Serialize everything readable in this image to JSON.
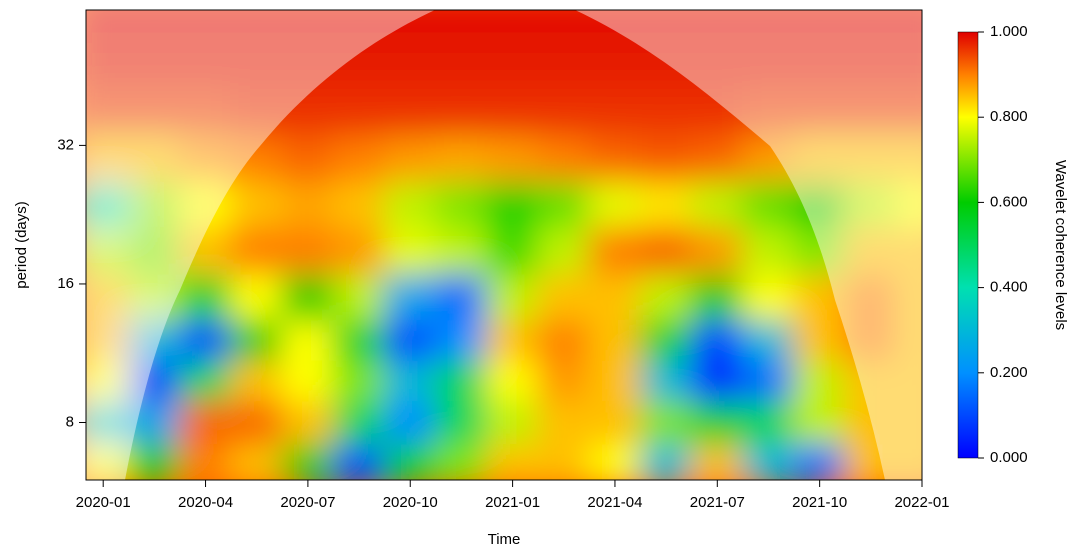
{
  "chart_data": {
    "type": "heatmap",
    "xlabel": "Time",
    "ylabel": "period (days)",
    "colorbar_label": "Wavelet coherence levels",
    "x": [
      2020.0,
      2020.125,
      2020.25,
      2020.375,
      2020.5,
      2020.625,
      2020.75,
      2020.875,
      2021.0,
      2021.125,
      2021.25,
      2021.375,
      2021.5,
      2021.625,
      2021.75,
      2021.875,
      2022.0
    ],
    "y": [
      6.5,
      8,
      10,
      12,
      15,
      19,
      24,
      30,
      38,
      48,
      60
    ],
    "z": [
      [
        0.8,
        0.6,
        0.9,
        0.85,
        0.6,
        0.1,
        0.55,
        0.7,
        0.85,
        0.85,
        0.8,
        0.3,
        0.85,
        0.3,
        0.15,
        0.85,
        0.85
      ],
      [
        0.35,
        0.25,
        0.92,
        0.92,
        0.85,
        0.5,
        0.2,
        0.5,
        0.75,
        0.85,
        0.85,
        0.7,
        0.55,
        0.5,
        0.75,
        0.85,
        0.85
      ],
      [
        0.8,
        0.1,
        0.5,
        0.85,
        0.8,
        0.7,
        0.3,
        0.5,
        0.8,
        0.88,
        0.85,
        0.3,
        0.05,
        0.15,
        0.75,
        0.85,
        0.85
      ],
      [
        0.85,
        0.3,
        0.1,
        0.6,
        0.8,
        0.55,
        0.1,
        0.2,
        0.85,
        0.9,
        0.85,
        0.55,
        0.1,
        0.3,
        0.85,
        0.9,
        0.85
      ],
      [
        0.85,
        0.75,
        0.55,
        0.8,
        0.6,
        0.75,
        0.25,
        0.15,
        0.75,
        0.85,
        0.85,
        0.75,
        0.6,
        0.8,
        0.85,
        0.9,
        0.85
      ],
      [
        0.75,
        0.7,
        0.85,
        0.9,
        0.9,
        0.88,
        0.78,
        0.75,
        0.65,
        0.75,
        0.9,
        0.92,
        0.88,
        0.75,
        0.7,
        0.85,
        0.85
      ],
      [
        0.4,
        0.72,
        0.8,
        0.85,
        0.87,
        0.85,
        0.75,
        0.7,
        0.62,
        0.68,
        0.78,
        0.82,
        0.75,
        0.68,
        0.6,
        0.75,
        0.8
      ],
      [
        0.85,
        0.85,
        0.88,
        0.9,
        0.92,
        0.9,
        0.88,
        0.87,
        0.88,
        0.9,
        0.92,
        0.93,
        0.92,
        0.88,
        0.85,
        0.85,
        0.85
      ],
      [
        0.95,
        0.95,
        0.95,
        0.96,
        0.96,
        0.96,
        0.96,
        0.96,
        0.96,
        0.96,
        0.96,
        0.96,
        0.96,
        0.95,
        0.95,
        0.95,
        0.95
      ],
      [
        0.98,
        0.98,
        0.98,
        0.98,
        0.98,
        0.98,
        0.98,
        0.98,
        0.98,
        0.98,
        0.98,
        0.98,
        0.98,
        0.98,
        0.98,
        0.98,
        0.98
      ],
      [
        0.99,
        0.99,
        0.99,
        0.99,
        0.99,
        0.99,
        0.99,
        0.99,
        0.99,
        0.99,
        0.99,
        0.99,
        0.99,
        0.99,
        0.99,
        0.99,
        0.99
      ]
    ],
    "xlim": [
      2019.958,
      2022.0
    ],
    "ylim": [
      6,
      63
    ],
    "log_y": true,
    "xticks": [
      {
        "value": 2020.0,
        "label": "2020-01"
      },
      {
        "value": 2020.25,
        "label": "2020-04"
      },
      {
        "value": 2020.5,
        "label": "2020-07"
      },
      {
        "value": 2020.75,
        "label": "2020-10"
      },
      {
        "value": 2021.0,
        "label": "2021-01"
      },
      {
        "value": 2021.25,
        "label": "2021-04"
      },
      {
        "value": 2021.5,
        "label": "2021-07"
      },
      {
        "value": 2021.75,
        "label": "2021-10"
      },
      {
        "value": 2022.0,
        "label": "2022-01"
      }
    ],
    "yticks": [
      8,
      16,
      32
    ],
    "zlim": [
      0,
      1
    ],
    "zticks": [
      {
        "value": 0,
        "label": "0.000"
      },
      {
        "value": 0.2,
        "label": "0.200"
      },
      {
        "value": 0.4,
        "label": "0.400"
      },
      {
        "value": 0.6,
        "label": "0.600"
      },
      {
        "value": 0.8,
        "label": "0.800"
      },
      {
        "value": 1,
        "label": "1.000"
      }
    ],
    "colorscale": [
      [
        0,
        "#0000ff"
      ],
      [
        0.2,
        "#0090ff"
      ],
      [
        0.4,
        "#00e0b0"
      ],
      [
        0.6,
        "#00cc00"
      ],
      [
        0.8,
        "#ffff00"
      ],
      [
        0.9,
        "#ff8000"
      ],
      [
        1,
        "#e00000"
      ]
    ]
  }
}
